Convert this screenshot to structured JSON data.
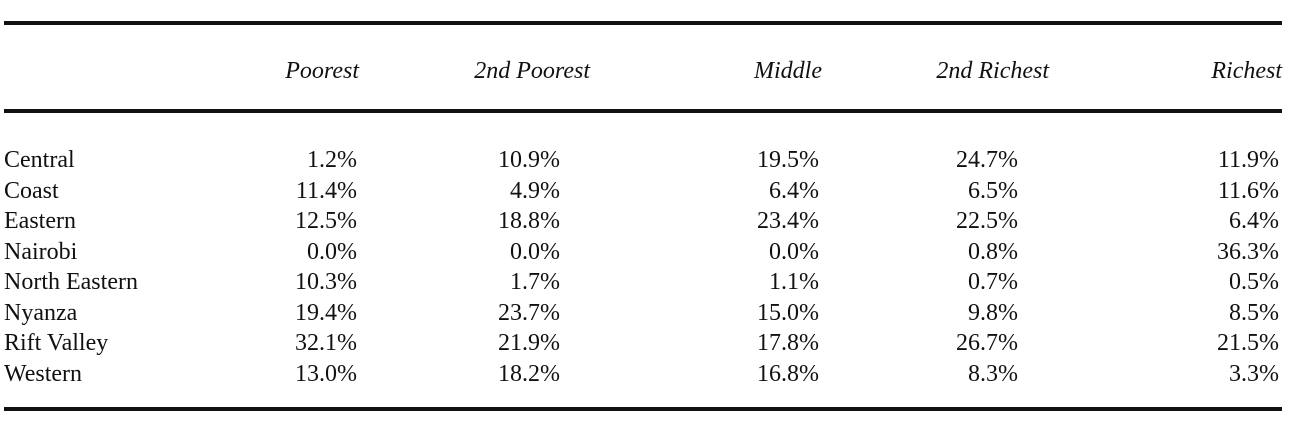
{
  "table": {
    "columns": [
      "Poorest",
      "2nd Poorest",
      "Middle",
      "2nd Richest",
      "Richest"
    ],
    "rows": [
      {
        "region": "Central",
        "values": [
          "1.2%",
          "10.9%",
          "19.5%",
          "24.7%",
          "11.9%"
        ]
      },
      {
        "region": "Coast",
        "values": [
          "11.4%",
          "4.9%",
          "6.4%",
          "6.5%",
          "11.6%"
        ]
      },
      {
        "region": "Eastern",
        "values": [
          "12.5%",
          "18.8%",
          "23.4%",
          "22.5%",
          "6.4%"
        ]
      },
      {
        "region": "Nairobi",
        "values": [
          "0.0%",
          "0.0%",
          "0.0%",
          "0.8%",
          "36.3%"
        ]
      },
      {
        "region": "North Eastern",
        "values": [
          "10.3%",
          "1.7%",
          "1.1%",
          "0.7%",
          "0.5%"
        ]
      },
      {
        "region": "Nyanza",
        "values": [
          "19.4%",
          "23.7%",
          "15.0%",
          "9.8%",
          "8.5%"
        ]
      },
      {
        "region": "Rift Valley",
        "values": [
          "32.1%",
          "21.9%",
          "17.8%",
          "26.7%",
          "21.5%"
        ]
      },
      {
        "region": "Western",
        "values": [
          "13.0%",
          "18.2%",
          "16.8%",
          "8.3%",
          "3.3%"
        ]
      }
    ]
  }
}
